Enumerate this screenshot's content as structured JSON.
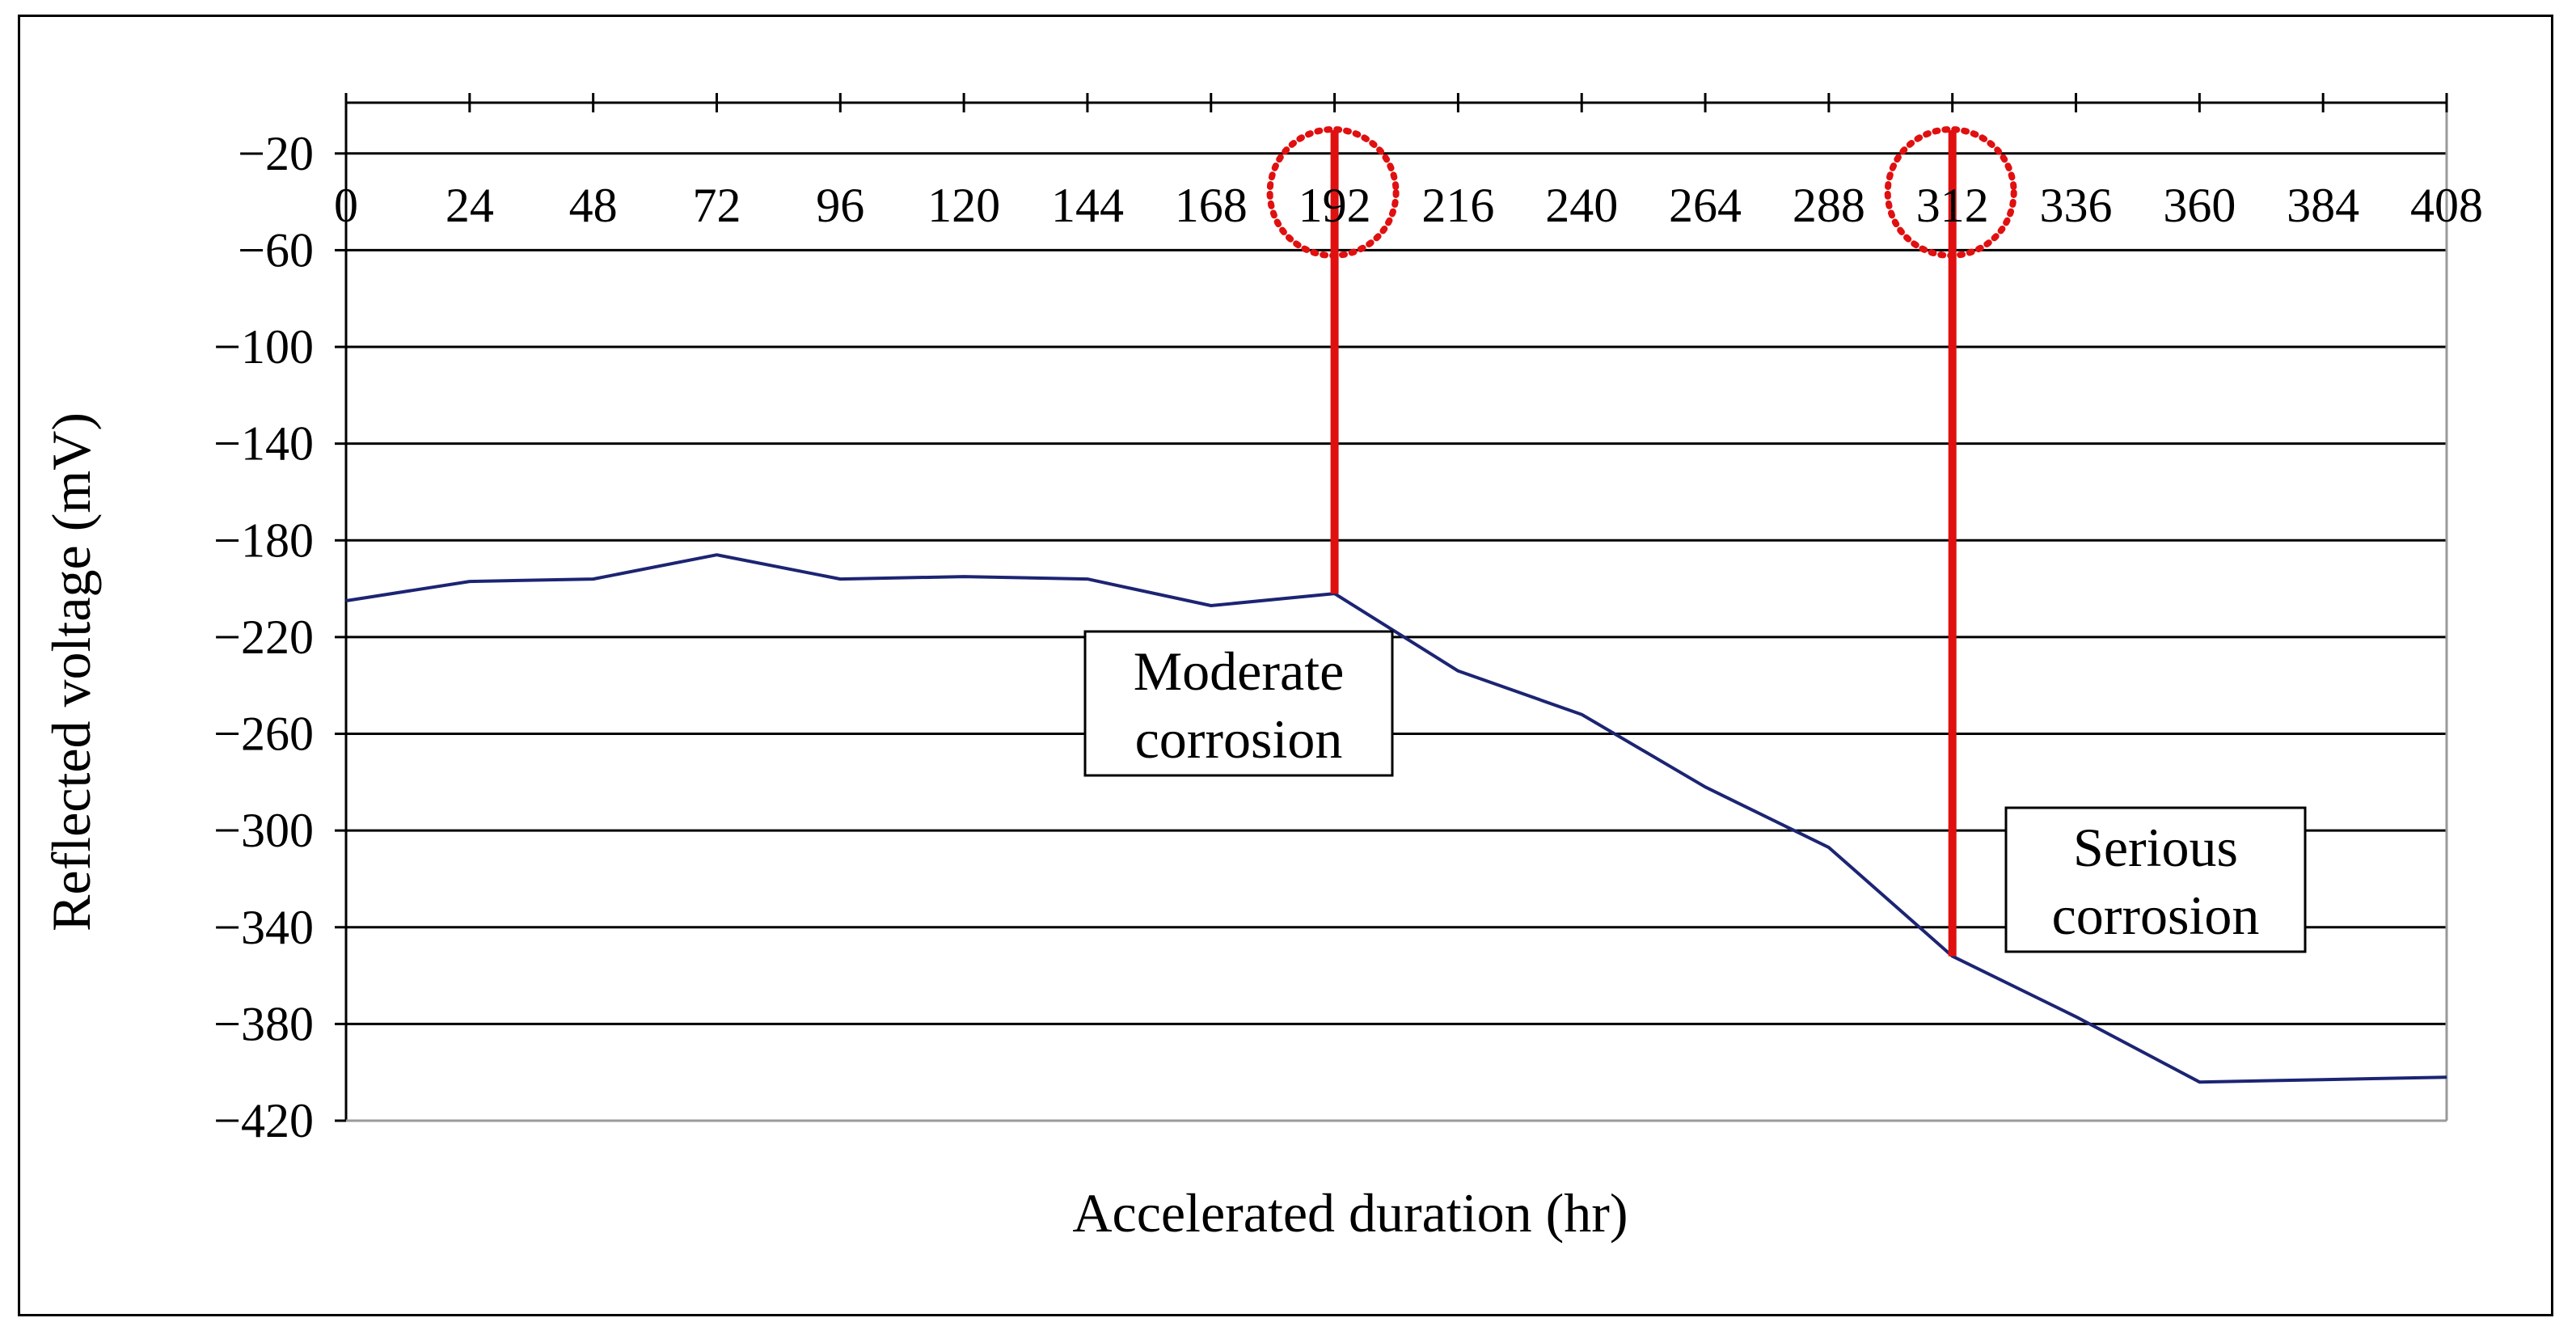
{
  "chart_data": {
    "type": "line",
    "title": "",
    "xlabel": "Accelerated duration (hr)",
    "ylabel": "Reflected voltage (mV)",
    "x_ticks": [
      0,
      24,
      48,
      72,
      96,
      120,
      144,
      168,
      192,
      216,
      240,
      264,
      288,
      312,
      336,
      360,
      384,
      408
    ],
    "x_tick_labels": [
      "0",
      "24",
      "48",
      "72",
      "96",
      "120",
      "144",
      "168",
      "192",
      "216",
      "240",
      "264",
      "288",
      "312",
      "336",
      "360",
      "384",
      "408"
    ],
    "y_ticks": [
      -20,
      -60,
      -100,
      -140,
      -180,
      -220,
      -260,
      -300,
      -340,
      -380,
      -420
    ],
    "y_tick_labels": [
      "−20",
      "−60",
      "−100",
      "−140",
      "−180",
      "−220",
      "−260",
      "−300",
      "−340",
      "−380",
      "−420"
    ],
    "xlim": [
      0,
      408
    ],
    "ylim": [
      -420,
      1
    ],
    "grid": true,
    "series": [
      {
        "name": "Reflected voltage",
        "color": "#1c2473",
        "x": [
          0,
          24,
          48,
          72,
          96,
          120,
          144,
          168,
          192,
          216,
          240,
          264,
          288,
          312,
          336,
          360,
          384,
          408
        ],
        "y": [
          -205,
          -197,
          -196,
          -186,
          -196,
          -195,
          -196,
          -207,
          -202,
          -234,
          -252,
          -282,
          -307,
          -352,
          -377,
          -404,
          -403,
          -402
        ]
      }
    ],
    "markers": [
      {
        "x": 192,
        "label_line1": "Moderate",
        "label_line2": "corrosion",
        "color": "#e01010"
      },
      {
        "x": 312,
        "label_line1": "Serious",
        "label_line2": "corrosion",
        "color": "#e01010"
      }
    ]
  }
}
